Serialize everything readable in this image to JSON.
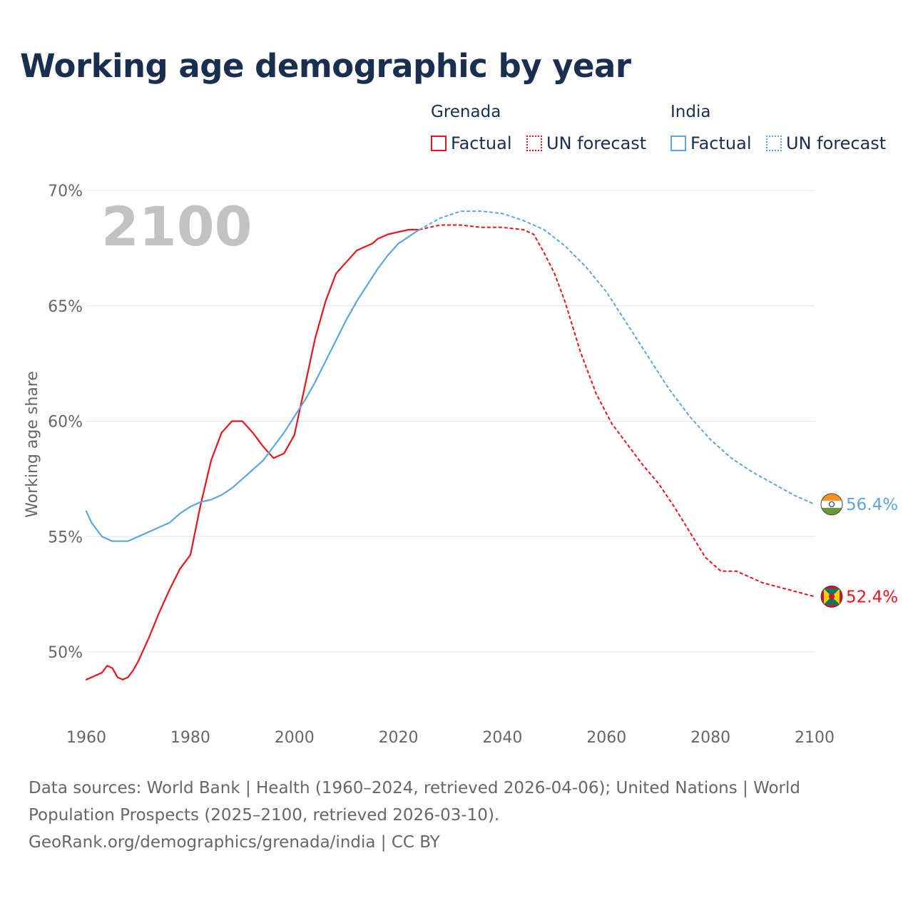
{
  "title": "Working age demographic by year",
  "year_overlay": "2100",
  "legend": {
    "groups": [
      {
        "name": "Grenada",
        "color": "#e8141c",
        "factual_label": "Factual",
        "forecast_label": "UN forecast"
      },
      {
        "name": "India",
        "color": "#5da5e0",
        "factual_label": "Factual",
        "forecast_label": "UN forecast"
      }
    ]
  },
  "footer": {
    "line1": "Data sources: World Bank | Health (1960–2024, retrieved 2026-04-06); United Nations | World",
    "line2": "Population Prospects (2025–2100, retrieved 2026-03-10).",
    "line3": "GeoRank.org/demographics/grenada/india | CC BY"
  },
  "chart_data": {
    "type": "line",
    "title": "Working age demographic by year",
    "xlabel": "",
    "ylabel": "Working age share",
    "xlim": [
      1960,
      2100
    ],
    "ylim": [
      48,
      70
    ],
    "x_ticks": [
      1960,
      1980,
      2000,
      2020,
      2040,
      2060,
      2080,
      2100
    ],
    "y_ticks": [
      {
        "value": 50,
        "label": "50%"
      },
      {
        "value": 55,
        "label": "55%"
      },
      {
        "value": 60,
        "label": "60%"
      },
      {
        "value": 65,
        "label": "65%"
      },
      {
        "value": 70,
        "label": "70%"
      }
    ],
    "grid": true,
    "series": [
      {
        "name": "Grenada",
        "color": "#e8141c",
        "end_label": "52.4%",
        "factual": {
          "x": [
            1960,
            1963,
            1964,
            1965,
            1966,
            1967,
            1968,
            1969,
            1970,
            1972,
            1974,
            1976,
            1978,
            1980,
            1982,
            1984,
            1986,
            1988,
            1990,
            1992,
            1994,
            1996,
            1998,
            2000,
            2002,
            2004,
            2006,
            2008,
            2010,
            2012,
            2014,
            2015,
            2016,
            2018,
            2020,
            2022,
            2024
          ],
          "y": [
            48.8,
            49.1,
            49.4,
            49.3,
            48.9,
            48.8,
            48.9,
            49.2,
            49.6,
            50.6,
            51.7,
            52.7,
            53.6,
            54.2,
            56.4,
            58.3,
            59.5,
            60.0,
            60.0,
            59.5,
            58.9,
            58.4,
            58.6,
            59.4,
            61.5,
            63.6,
            65.2,
            66.4,
            66.9,
            67.4,
            67.6,
            67.7,
            67.9,
            68.1,
            68.2,
            68.3,
            68.3
          ],
          "x_last": 2024
        },
        "forecast": {
          "x": [
            2024,
            2028,
            2032,
            2036,
            2040,
            2044,
            2046,
            2048,
            2050,
            2052,
            2055,
            2058,
            2061,
            2064,
            2067,
            2070,
            2073,
            2076,
            2079,
            2082,
            2085,
            2090,
            2095,
            2100
          ],
          "y": [
            68.3,
            68.5,
            68.5,
            68.4,
            68.4,
            68.3,
            68.1,
            67.3,
            66.4,
            65.2,
            63.0,
            61.2,
            59.9,
            59.0,
            58.1,
            57.3,
            56.3,
            55.2,
            54.1,
            53.5,
            53.5,
            53.0,
            52.7,
            52.4
          ]
        }
      },
      {
        "name": "India",
        "color": "#5da5e0",
        "end_label": "56.4%",
        "factual": {
          "x": [
            1960,
            1961,
            1962,
            1963,
            1964,
            1965,
            1966,
            1967,
            1968,
            1970,
            1972,
            1974,
            1976,
            1978,
            1980,
            1982,
            1984,
            1986,
            1988,
            1990,
            1992,
            1994,
            1996,
            1998,
            2000,
            2002,
            2004,
            2006,
            2008,
            2010,
            2012,
            2014,
            2016,
            2018,
            2020,
            2022,
            2024
          ],
          "y": [
            56.1,
            55.6,
            55.3,
            55.0,
            54.9,
            54.8,
            54.8,
            54.8,
            54.8,
            55.0,
            55.2,
            55.4,
            55.6,
            56.0,
            56.3,
            56.5,
            56.6,
            56.8,
            57.1,
            57.5,
            57.9,
            58.3,
            58.9,
            59.5,
            60.2,
            60.9,
            61.7,
            62.6,
            63.5,
            64.4,
            65.2,
            65.9,
            66.6,
            67.2,
            67.7,
            68.0,
            68.3
          ],
          "x_last": 2024
        },
        "forecast": {
          "x": [
            2024,
            2028,
            2032,
            2036,
            2040,
            2044,
            2048,
            2052,
            2056,
            2060,
            2064,
            2068,
            2072,
            2076,
            2080,
            2084,
            2088,
            2092,
            2096,
            2100
          ],
          "y": [
            68.3,
            68.8,
            69.1,
            69.1,
            69.0,
            68.7,
            68.3,
            67.6,
            66.7,
            65.6,
            64.2,
            62.8,
            61.4,
            60.2,
            59.2,
            58.4,
            57.8,
            57.3,
            56.8,
            56.4
          ]
        }
      }
    ]
  }
}
